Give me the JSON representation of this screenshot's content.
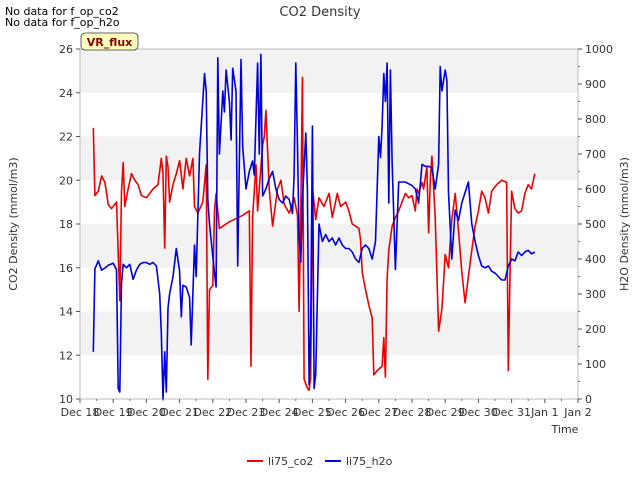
{
  "notes": [
    "No data for f_op_co2",
    "No data for f_op_h2o"
  ],
  "badge": "VR_flux",
  "colors": {
    "co2": "#ee0000",
    "h2o": "#0000dd",
    "band": "#f2f2f2"
  },
  "chart_data": {
    "type": "line",
    "title": "CO2 Density",
    "xlabel": "Time",
    "ylabel_left": "CO2 Density (mmol/m3)",
    "ylabel_right": "H2O Density (mmol/m3)",
    "x_ticks": [
      "Dec 18",
      "Dec 19",
      "Dec 20",
      "Dec 21",
      "Dec 22",
      "Dec 23",
      "Dec 24",
      "Dec 25",
      "Dec 26",
      "Dec 27",
      "Dec 28",
      "Dec 29",
      "Dec 30",
      "Dec 31",
      "Jan 1",
      "Jan 2"
    ],
    "xlim_days": [
      0,
      15
    ],
    "ylim_left": [
      10,
      26
    ],
    "ylim_right": [
      0,
      1000
    ],
    "y_ticks_left": [
      10,
      12,
      14,
      16,
      18,
      20,
      22,
      24,
      26
    ],
    "y_ticks_right": [
      0,
      100,
      200,
      300,
      400,
      500,
      600,
      700,
      800,
      900,
      1000
    ],
    "legend": {
      "placement": "bottom-center"
    },
    "series": [
      {
        "name": "li75_co2",
        "axis": "left",
        "points": [
          [
            0.4,
            22.4
          ],
          [
            0.45,
            19.3
          ],
          [
            0.55,
            19.5
          ],
          [
            0.65,
            20.2
          ],
          [
            0.75,
            19.9
          ],
          [
            0.85,
            18.9
          ],
          [
            0.95,
            18.7
          ],
          [
            1.1,
            19.0
          ],
          [
            1.2,
            14.5
          ],
          [
            1.25,
            19.5
          ],
          [
            1.3,
            20.8
          ],
          [
            1.35,
            18.8
          ],
          [
            1.45,
            19.6
          ],
          [
            1.55,
            20.3
          ],
          [
            1.65,
            20.0
          ],
          [
            1.75,
            19.8
          ],
          [
            1.85,
            19.3
          ],
          [
            2.0,
            19.2
          ],
          [
            2.2,
            19.6
          ],
          [
            2.35,
            19.8
          ],
          [
            2.45,
            21.0
          ],
          [
            2.5,
            20.3
          ],
          [
            2.55,
            16.9
          ],
          [
            2.6,
            21.1
          ],
          [
            2.65,
            20.6
          ],
          [
            2.7,
            19.0
          ],
          [
            2.8,
            19.8
          ],
          [
            2.9,
            20.3
          ],
          [
            3.0,
            20.9
          ],
          [
            3.1,
            19.6
          ],
          [
            3.2,
            21.0
          ],
          [
            3.3,
            20.2
          ],
          [
            3.4,
            21.0
          ],
          [
            3.45,
            18.8
          ],
          [
            3.55,
            18.5
          ],
          [
            3.7,
            19.0
          ],
          [
            3.8,
            20.7
          ],
          [
            3.85,
            10.9
          ],
          [
            3.9,
            15.0
          ],
          [
            4.0,
            15.2
          ],
          [
            4.05,
            18.6
          ],
          [
            4.1,
            19.4
          ],
          [
            4.2,
            17.8
          ],
          [
            4.5,
            18.1
          ],
          [
            4.9,
            18.4
          ],
          [
            5.1,
            18.6
          ],
          [
            5.15,
            11.5
          ],
          [
            5.2,
            18.3
          ],
          [
            5.3,
            20.7
          ],
          [
            5.35,
            18.6
          ],
          [
            5.5,
            21.6
          ],
          [
            5.55,
            22.0
          ],
          [
            5.6,
            23.2
          ],
          [
            5.7,
            19.6
          ],
          [
            5.8,
            17.9
          ],
          [
            5.95,
            19.6
          ],
          [
            6.05,
            20.0
          ],
          [
            6.15,
            18.9
          ],
          [
            6.3,
            18.5
          ],
          [
            6.35,
            18.7
          ],
          [
            6.45,
            19.2
          ],
          [
            6.55,
            18.4
          ],
          [
            6.6,
            14.0
          ],
          [
            6.65,
            18.5
          ],
          [
            6.7,
            24.7
          ],
          [
            6.75,
            10.9
          ],
          [
            6.85,
            10.5
          ],
          [
            6.9,
            10.4
          ],
          [
            6.95,
            11.0
          ],
          [
            7.0,
            19.7
          ],
          [
            7.1,
            18.2
          ],
          [
            7.2,
            19.2
          ],
          [
            7.35,
            18.8
          ],
          [
            7.5,
            19.4
          ],
          [
            7.6,
            18.3
          ],
          [
            7.75,
            19.4
          ],
          [
            7.85,
            18.8
          ],
          [
            8.0,
            19.0
          ],
          [
            8.1,
            18.6
          ],
          [
            8.2,
            18.0
          ],
          [
            8.3,
            17.9
          ],
          [
            8.4,
            17.8
          ],
          [
            8.45,
            17.3
          ],
          [
            8.5,
            15.8
          ],
          [
            8.6,
            15.0
          ],
          [
            8.7,
            14.3
          ],
          [
            8.8,
            13.7
          ],
          [
            8.85,
            11.1
          ],
          [
            8.95,
            11.3
          ],
          [
            9.1,
            11.5
          ],
          [
            9.15,
            12.8
          ],
          [
            9.2,
            11.0
          ],
          [
            9.25,
            15.5
          ],
          [
            9.3,
            16.8
          ],
          [
            9.4,
            17.9
          ],
          [
            9.5,
            18.3
          ],
          [
            9.6,
            18.6
          ],
          [
            9.7,
            19.0
          ],
          [
            9.8,
            19.4
          ],
          [
            9.9,
            19.2
          ],
          [
            10.0,
            19.3
          ],
          [
            10.1,
            18.6
          ],
          [
            10.15,
            19.6
          ],
          [
            10.2,
            19.4
          ],
          [
            10.3,
            19.9
          ],
          [
            10.35,
            19.6
          ],
          [
            10.45,
            20.6
          ],
          [
            10.5,
            17.6
          ],
          [
            10.55,
            20.0
          ],
          [
            10.6,
            21.1
          ],
          [
            10.7,
            18.3
          ],
          [
            10.8,
            13.1
          ],
          [
            10.9,
            14.1
          ],
          [
            11.0,
            16.6
          ],
          [
            11.1,
            16.0
          ],
          [
            11.2,
            18.2
          ],
          [
            11.3,
            19.4
          ],
          [
            11.4,
            17.7
          ],
          [
            11.5,
            15.8
          ],
          [
            11.6,
            14.4
          ],
          [
            11.7,
            15.6
          ],
          [
            11.8,
            16.8
          ],
          [
            11.9,
            17.9
          ],
          [
            12.0,
            18.6
          ],
          [
            12.1,
            19.5
          ],
          [
            12.2,
            19.2
          ],
          [
            12.3,
            18.5
          ],
          [
            12.4,
            19.5
          ],
          [
            12.55,
            19.8
          ],
          [
            12.7,
            20.0
          ],
          [
            12.85,
            19.9
          ],
          [
            12.9,
            11.3
          ],
          [
            12.95,
            15.4
          ],
          [
            13.0,
            19.5
          ],
          [
            13.1,
            18.7
          ],
          [
            13.2,
            18.5
          ],
          [
            13.3,
            18.6
          ],
          [
            13.4,
            19.4
          ],
          [
            13.5,
            19.8
          ],
          [
            13.6,
            19.6
          ],
          [
            13.7,
            20.3
          ]
        ]
      },
      {
        "name": "li75_h2o",
        "axis": "right",
        "points": [
          [
            0.4,
            135
          ],
          [
            0.45,
            372
          ],
          [
            0.55,
            395
          ],
          [
            0.65,
            368
          ],
          [
            0.75,
            374
          ],
          [
            0.85,
            382
          ],
          [
            1.0,
            388
          ],
          [
            1.1,
            370
          ],
          [
            1.15,
            30
          ],
          [
            1.2,
            20
          ],
          [
            1.25,
            330
          ],
          [
            1.3,
            385
          ],
          [
            1.4,
            375
          ],
          [
            1.5,
            385
          ],
          [
            1.6,
            342
          ],
          [
            1.7,
            368
          ],
          [
            1.8,
            385
          ],
          [
            1.9,
            390
          ],
          [
            2.0,
            390
          ],
          [
            2.1,
            385
          ],
          [
            2.2,
            390
          ],
          [
            2.3,
            380
          ],
          [
            2.4,
            300
          ],
          [
            2.45,
            190
          ],
          [
            2.5,
            0
          ],
          [
            2.55,
            135
          ],
          [
            2.6,
            20
          ],
          [
            2.65,
            260
          ],
          [
            2.7,
            300
          ],
          [
            2.8,
            350
          ],
          [
            2.9,
            430
          ],
          [
            3.0,
            365
          ],
          [
            3.05,
            235
          ],
          [
            3.1,
            325
          ],
          [
            3.2,
            320
          ],
          [
            3.3,
            290
          ],
          [
            3.35,
            155
          ],
          [
            3.45,
            440
          ],
          [
            3.5,
            350
          ],
          [
            3.6,
            700
          ],
          [
            3.75,
            930
          ],
          [
            3.8,
            880
          ],
          [
            3.85,
            570
          ],
          [
            3.9,
            500
          ],
          [
            4.05,
            360
          ],
          [
            4.1,
            320
          ],
          [
            4.15,
            975
          ],
          [
            4.2,
            700
          ],
          [
            4.3,
            880
          ],
          [
            4.35,
            820
          ],
          [
            4.4,
            940
          ],
          [
            4.5,
            850
          ],
          [
            4.55,
            740
          ],
          [
            4.6,
            945
          ],
          [
            4.7,
            880
          ],
          [
            4.75,
            380
          ],
          [
            4.85,
            970
          ],
          [
            4.9,
            720
          ],
          [
            5.0,
            600
          ],
          [
            5.1,
            650
          ],
          [
            5.2,
            680
          ],
          [
            5.25,
            640
          ],
          [
            5.35,
            960
          ],
          [
            5.4,
            700
          ],
          [
            5.45,
            985
          ],
          [
            5.5,
            580
          ],
          [
            5.6,
            600
          ],
          [
            5.7,
            630
          ],
          [
            5.8,
            650
          ],
          [
            5.9,
            600
          ],
          [
            6.0,
            570
          ],
          [
            6.1,
            560
          ],
          [
            6.2,
            580
          ],
          [
            6.3,
            570
          ],
          [
            6.4,
            530
          ],
          [
            6.45,
            640
          ],
          [
            6.5,
            960
          ],
          [
            6.55,
            720
          ],
          [
            6.6,
            460
          ],
          [
            6.65,
            390
          ],
          [
            6.7,
            570
          ],
          [
            6.8,
            760
          ],
          [
            6.85,
            600
          ],
          [
            6.9,
            40
          ],
          [
            6.95,
            200
          ],
          [
            7.0,
            780
          ],
          [
            7.05,
            30
          ],
          [
            7.1,
            70
          ],
          [
            7.2,
            500
          ],
          [
            7.3,
            450
          ],
          [
            7.4,
            470
          ],
          [
            7.5,
            450
          ],
          [
            7.6,
            460
          ],
          [
            7.7,
            440
          ],
          [
            7.8,
            460
          ],
          [
            7.9,
            440
          ],
          [
            8.0,
            430
          ],
          [
            8.1,
            430
          ],
          [
            8.2,
            420
          ],
          [
            8.3,
            400
          ],
          [
            8.4,
            390
          ],
          [
            8.5,
            430
          ],
          [
            8.6,
            440
          ],
          [
            8.7,
            430
          ],
          [
            8.8,
            400
          ],
          [
            8.9,
            450
          ],
          [
            9.0,
            750
          ],
          [
            9.05,
            690
          ],
          [
            9.1,
            780
          ],
          [
            9.15,
            930
          ],
          [
            9.2,
            850
          ],
          [
            9.25,
            960
          ],
          [
            9.3,
            560
          ],
          [
            9.35,
            940
          ],
          [
            9.4,
            680
          ],
          [
            9.5,
            370
          ],
          [
            9.6,
            620
          ],
          [
            9.7,
            620
          ],
          [
            9.8,
            620
          ],
          [
            9.9,
            615
          ],
          [
            10.0,
            610
          ],
          [
            10.1,
            600
          ],
          [
            10.2,
            560
          ],
          [
            10.3,
            670
          ],
          [
            10.4,
            665
          ],
          [
            10.5,
            665
          ],
          [
            10.6,
            660
          ],
          [
            10.7,
            600
          ],
          [
            10.8,
            670
          ],
          [
            10.85,
            950
          ],
          [
            10.9,
            880
          ],
          [
            11.0,
            940
          ],
          [
            11.05,
            910
          ],
          [
            11.1,
            590
          ],
          [
            11.2,
            400
          ],
          [
            11.3,
            540
          ],
          [
            11.4,
            510
          ],
          [
            11.5,
            560
          ],
          [
            11.6,
            590
          ],
          [
            11.7,
            620
          ],
          [
            11.8,
            500
          ],
          [
            11.9,
            450
          ],
          [
            12.0,
            410
          ],
          [
            12.1,
            380
          ],
          [
            12.2,
            375
          ],
          [
            12.3,
            380
          ],
          [
            12.4,
            365
          ],
          [
            12.5,
            360
          ],
          [
            12.6,
            350
          ],
          [
            12.7,
            340
          ],
          [
            12.8,
            340
          ],
          [
            12.9,
            380
          ],
          [
            13.0,
            400
          ],
          [
            13.1,
            395
          ],
          [
            13.2,
            420
          ],
          [
            13.3,
            410
          ],
          [
            13.4,
            420
          ],
          [
            13.5,
            425
          ],
          [
            13.6,
            415
          ],
          [
            13.7,
            420
          ]
        ]
      }
    ]
  }
}
